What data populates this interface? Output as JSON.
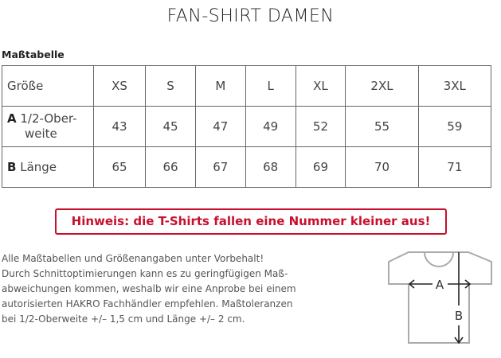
{
  "title": "FAN-SHIRT DAMEN",
  "subtitle": "Maßtabelle",
  "table": {
    "header": {
      "label": "Größe",
      "sizes": [
        "XS",
        "S",
        "M",
        "L",
        "XL",
        "2XL",
        "3XL"
      ]
    },
    "rows": [
      {
        "letter": "A",
        "label": "1/2-Ober-",
        "label2": "weite",
        "values": [
          "43",
          "45",
          "47",
          "49",
          "52",
          "55",
          "59"
        ]
      },
      {
        "letter": "B",
        "label": "Länge",
        "values": [
          "65",
          "66",
          "67",
          "68",
          "69",
          "70",
          "71"
        ]
      }
    ]
  },
  "notice": "Hinweis: die T-Shirts fallen eine Nummer kleiner aus!",
  "notice_color": "#c8102e",
  "paragraph": [
    "Alle Maßtabellen und Größenangaben unter Vorbehalt!",
    "Durch Schnittoptimierungen kann es zu geringfügigen Maß-",
    "abweichungen kommen, weshalb wir eine Anprobe bei einem",
    "autorisierten HAKRO Fachhändler empfehlen. Maßtoleranzen",
    "bei 1/2-Oberweite +/– 1,5 cm und Länge +/– 2 cm."
  ],
  "diagram": {
    "label_a": "A",
    "label_b": "B"
  }
}
